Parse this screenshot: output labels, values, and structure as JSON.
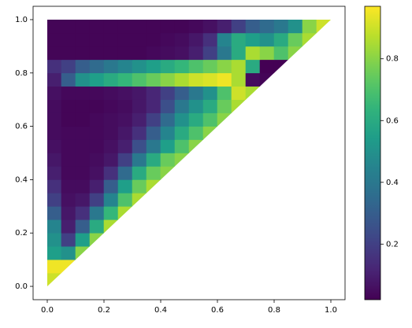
{
  "chart_data": {
    "type": "heatmap",
    "colormap": "viridis",
    "xlim": [
      -0.05,
      1.05
    ],
    "ylim": [
      -0.05,
      1.05
    ],
    "xticks": [
      {
        "value": 0,
        "label": "0.0"
      },
      0.2,
      0.4,
      0.6,
      0.8,
      {
        "value": 1,
        "label": "1.0"
      }
    ],
    "yticks": [
      {
        "value": 0,
        "label": "0.0"
      },
      0.2,
      0.4,
      0.6,
      0.8,
      {
        "value": 1,
        "label": "1.0"
      }
    ],
    "clim": [
      0.02,
      0.97
    ],
    "cticks": [
      0.2,
      0.4,
      0.6,
      0.8
    ],
    "x": [
      0.025,
      0.075,
      0.125,
      0.175,
      0.225,
      0.275,
      0.325,
      0.375,
      0.425,
      0.475,
      0.525,
      0.575,
      0.625,
      0.675,
      0.725,
      0.775,
      0.825,
      0.875,
      0.925,
      0.975
    ],
    "y": [
      0.025,
      0.075,
      0.125,
      0.175,
      0.225,
      0.275,
      0.325,
      0.375,
      0.425,
      0.475,
      0.525,
      0.575,
      0.625,
      0.675,
      0.725,
      0.775,
      0.825,
      0.875,
      0.925,
      0.975
    ],
    "z": [
      [
        0.9,
        null,
        null,
        null,
        null,
        null,
        null,
        null,
        null,
        null,
        null,
        null,
        null,
        null,
        null,
        null,
        null,
        null,
        null,
        null
      ],
      [
        0.95,
        0.95,
        null,
        null,
        null,
        null,
        null,
        null,
        null,
        null,
        null,
        null,
        null,
        null,
        null,
        null,
        null,
        null,
        null,
        null
      ],
      [
        0.55,
        0.5,
        0.8,
        null,
        null,
        null,
        null,
        null,
        null,
        null,
        null,
        null,
        null,
        null,
        null,
        null,
        null,
        null,
        null,
        null
      ],
      [
        0.5,
        0.2,
        0.55,
        0.8,
        null,
        null,
        null,
        null,
        null,
        null,
        null,
        null,
        null,
        null,
        null,
        null,
        null,
        null,
        null,
        null
      ],
      [
        0.45,
        0.1,
        0.3,
        0.6,
        0.85,
        null,
        null,
        null,
        null,
        null,
        null,
        null,
        null,
        null,
        null,
        null,
        null,
        null,
        null,
        null
      ],
      [
        0.3,
        0.08,
        0.15,
        0.4,
        0.65,
        0.85,
        null,
        null,
        null,
        null,
        null,
        null,
        null,
        null,
        null,
        null,
        null,
        null,
        null,
        null
      ],
      [
        0.2,
        0.06,
        0.08,
        0.2,
        0.45,
        0.7,
        0.85,
        null,
        null,
        null,
        null,
        null,
        null,
        null,
        null,
        null,
        null,
        null,
        null,
        null
      ],
      [
        0.15,
        0.05,
        0.05,
        0.1,
        0.3,
        0.55,
        0.75,
        0.85,
        null,
        null,
        null,
        null,
        null,
        null,
        null,
        null,
        null,
        null,
        null,
        null
      ],
      [
        0.1,
        0.04,
        0.04,
        0.06,
        0.15,
        0.35,
        0.6,
        0.75,
        0.8,
        null,
        null,
        null,
        null,
        null,
        null,
        null,
        null,
        null,
        null,
        null
      ],
      [
        0.08,
        0.04,
        0.04,
        0.05,
        0.08,
        0.2,
        0.4,
        0.6,
        0.75,
        0.8,
        null,
        null,
        null,
        null,
        null,
        null,
        null,
        null,
        null,
        null
      ],
      [
        0.06,
        0.04,
        0.04,
        0.04,
        0.06,
        0.1,
        0.25,
        0.4,
        0.55,
        0.7,
        0.8,
        null,
        null,
        null,
        null,
        null,
        null,
        null,
        null,
        null
      ],
      [
        0.05,
        0.04,
        0.04,
        0.04,
        0.05,
        0.08,
        0.15,
        0.3,
        0.45,
        0.6,
        0.7,
        0.8,
        null,
        null,
        null,
        null,
        null,
        null,
        null,
        null
      ],
      [
        0.05,
        0.03,
        0.03,
        0.04,
        0.05,
        0.06,
        0.1,
        0.2,
        0.35,
        0.5,
        0.6,
        0.7,
        0.8,
        null,
        null,
        null,
        null,
        null,
        null,
        null
      ],
      [
        0.05,
        0.03,
        0.03,
        0.03,
        0.04,
        0.05,
        0.08,
        0.12,
        0.25,
        0.4,
        0.5,
        0.6,
        0.75,
        0.85,
        null,
        null,
        null,
        null,
        null,
        null
      ],
      [
        0.06,
        0.04,
        0.04,
        0.04,
        0.05,
        0.06,
        0.08,
        0.12,
        0.2,
        0.3,
        0.4,
        0.5,
        0.7,
        0.9,
        0.85,
        null,
        null,
        null,
        null,
        null
      ],
      [
        0.1,
        0.3,
        0.5,
        0.55,
        0.6,
        0.65,
        0.7,
        0.75,
        0.8,
        0.85,
        0.9,
        0.92,
        0.95,
        0.85,
        0.05,
        0.03,
        null,
        null,
        null,
        null
      ],
      [
        0.15,
        0.2,
        0.3,
        0.35,
        0.4,
        0.45,
        0.5,
        0.55,
        0.6,
        0.65,
        0.7,
        0.75,
        0.8,
        0.85,
        0.6,
        0.02,
        0.02,
        null,
        null,
        null
      ],
      [
        0.03,
        0.03,
        0.03,
        0.03,
        0.03,
        0.03,
        0.03,
        0.04,
        0.05,
        0.06,
        0.1,
        0.2,
        0.4,
        0.6,
        0.85,
        0.8,
        0.7,
        0.8,
        null,
        null
      ],
      [
        0.03,
        0.03,
        0.03,
        0.03,
        0.03,
        0.03,
        0.03,
        0.03,
        0.04,
        0.05,
        0.08,
        0.15,
        0.45,
        0.6,
        0.55,
        0.5,
        0.6,
        0.75,
        0.85,
        null
      ],
      [
        0.03,
        0.03,
        0.03,
        0.03,
        0.03,
        0.03,
        0.03,
        0.03,
        0.03,
        0.03,
        0.04,
        0.06,
        0.1,
        0.2,
        0.3,
        0.35,
        0.4,
        0.5,
        0.8,
        0.9
      ]
    ]
  }
}
